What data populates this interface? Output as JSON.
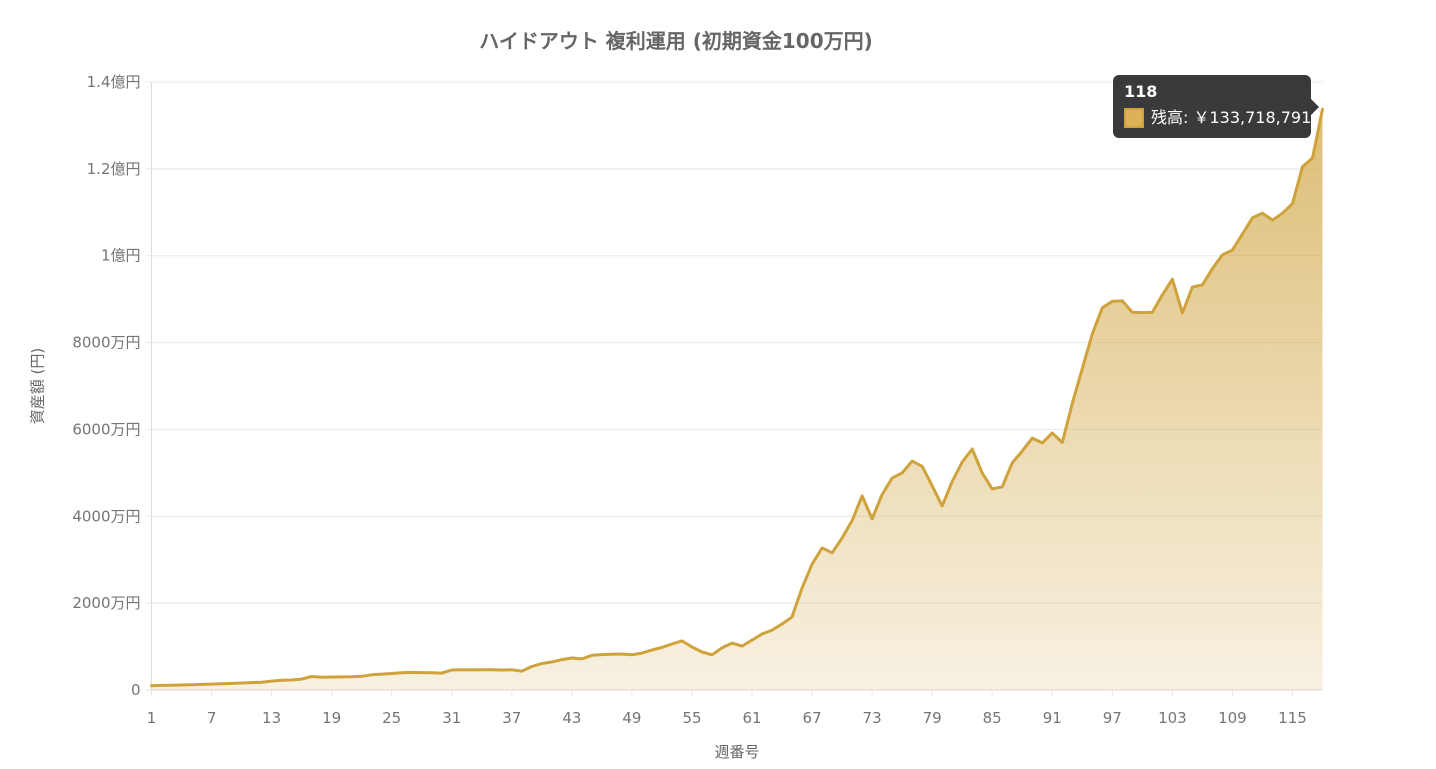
{
  "header": {
    "title": "ハイドアウト 複利運用 (初期資金100万円)"
  },
  "tooltip": {
    "title": "118",
    "series_label": "残高",
    "value_text": "¥133,718,791",
    "label": "残高: ￥133,718,791",
    "swatch_color": "#DDB158",
    "background": "rgba(20,20,20,0.84)"
  },
  "chart_data": {
    "type": "area",
    "title": "ハイドアウト 複利運用 (初期資金100万円)",
    "xlabel": "週番号",
    "ylabel": "資産額 (円)",
    "legend": "none",
    "grid": "horizontal",
    "x_range": [
      1,
      118
    ],
    "x_tick_labels": [
      1,
      7,
      13,
      19,
      25,
      31,
      37,
      43,
      49,
      55,
      61,
      67,
      73,
      79,
      85,
      91,
      97,
      103,
      109,
      115
    ],
    "ylim": [
      0,
      140000000
    ],
    "y_ticks": [
      {
        "value": 140000000,
        "label": "1.4億円"
      },
      {
        "value": 120000000,
        "label": "1.2億円"
      },
      {
        "value": 100000000,
        "label": "1億円"
      },
      {
        "value": 80000000,
        "label": "8000万円"
      },
      {
        "value": 60000000,
        "label": "6000万円"
      },
      {
        "value": 40000000,
        "label": "4000万円"
      },
      {
        "value": 20000000,
        "label": "2000万円"
      },
      {
        "value": 0,
        "label": "0"
      }
    ],
    "line_color": "#CFA23C",
    "fill_gradient_top": "rgba(207,162,60,0.70)",
    "fill_gradient_bottom": "rgba(207,162,60,0.15)",
    "grid_color": "#E8E8E8",
    "axis_line_color": "#DCDCDC",
    "tick_text_color": "#757575",
    "highlighted_point": {
      "week": 118,
      "value": 133718791
    },
    "series": [
      {
        "name": "残高",
        "values": [
          1000000,
          1050000,
          1100000,
          1160000,
          1230000,
          1300000,
          1370000,
          1450000,
          1530000,
          1610000,
          1700000,
          1800000,
          2050000,
          2250000,
          2300000,
          2500000,
          3100000,
          2950000,
          3000000,
          3020000,
          3050000,
          3150000,
          3500000,
          3650000,
          3800000,
          3950000,
          4050000,
          4000000,
          3950000,
          3900000,
          4600000,
          4650000,
          4630000,
          4660000,
          4640000,
          4600000,
          4640000,
          4350000,
          5400000,
          6100000,
          6450000,
          7000000,
          7370000,
          7150000,
          8000000,
          8150000,
          8220000,
          8300000,
          8100000,
          8500000,
          9200000,
          9800000,
          10600000,
          11300000,
          9900000,
          8750000,
          8100000,
          9700000,
          10800000,
          10100000,
          11500000,
          12900000,
          13800000,
          15200000,
          16800000,
          23500000,
          29000000,
          32700000,
          31600000,
          35000000,
          39000000,
          44700000,
          39400000,
          45000000,
          48800000,
          50000000,
          52700000,
          51500000,
          47000000,
          42400000,
          48000000,
          52500000,
          55500000,
          50000000,
          46300000,
          46800000,
          52300000,
          55000000,
          58000000,
          56900000,
          59200000,
          57000000,
          66000000,
          74000000,
          82000000,
          88000000,
          89500000,
          89600000,
          87000000,
          86900000,
          87000000,
          91000000,
          94600000,
          86800000,
          92800000,
          93300000,
          97000000,
          100200000,
          101300000,
          105000000,
          108700000,
          109800000,
          108200000,
          109800000,
          112000000,
          120500000,
          122500000,
          133718791
        ]
      }
    ]
  }
}
